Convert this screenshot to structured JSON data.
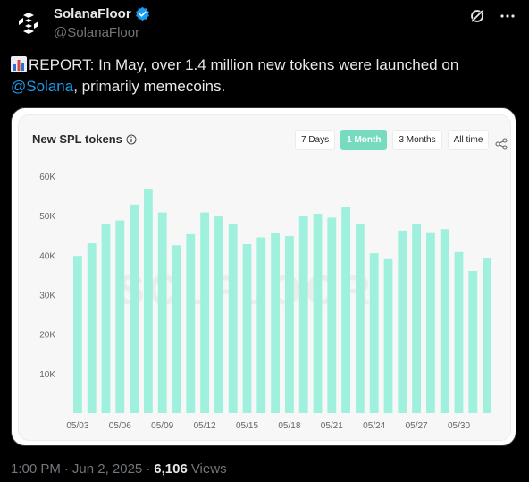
{
  "author": {
    "display_name": "SolanaFloor",
    "handle": "@SolanaFloor",
    "verified_color": "#1d9bf0"
  },
  "tweet": {
    "text_before": "REPORT: In May, over 1.4 million new tokens were launched on ",
    "mention": "@Solana",
    "text_after": ", primarily memecoins."
  },
  "footer": {
    "time": "1:00 PM",
    "sep1": "·",
    "date": "Jun 2, 2025",
    "sep2": "·",
    "views_count": "6,106",
    "views_label": "Views"
  },
  "chart_widget": {
    "title": "New SPL tokens",
    "tabs": [
      {
        "label": "7 Days",
        "active": false
      },
      {
        "label": "1 Month",
        "active": true
      },
      {
        "label": "3 Months",
        "active": false
      },
      {
        "label": "All time",
        "active": false
      }
    ],
    "watermark": "SOLFLOOR",
    "accent": "#9ff0dc"
  },
  "chart_data": {
    "type": "bar",
    "title": "New SPL tokens",
    "xlabel": "",
    "ylabel": "",
    "ylim": [
      0,
      60000
    ],
    "yticks": [
      "10K",
      "20K",
      "30K",
      "40K",
      "50K",
      "60K"
    ],
    "ytick_values": [
      10000,
      20000,
      30000,
      40000,
      50000,
      60000
    ],
    "xtick_labels": [
      "05/03",
      "05/06",
      "05/09",
      "05/12",
      "05/15",
      "05/18",
      "05/21",
      "05/24",
      "05/27",
      "05/30"
    ],
    "categories": [
      "05/03",
      "05/04",
      "05/05",
      "05/06",
      "05/07",
      "05/08",
      "05/09",
      "05/10",
      "05/11",
      "05/12",
      "05/13",
      "05/14",
      "05/15",
      "05/16",
      "05/17",
      "05/18",
      "05/19",
      "05/20",
      "05/21",
      "05/22",
      "05/23",
      "05/24",
      "05/25",
      "05/26",
      "05/27",
      "05/28",
      "05/29",
      "05/30",
      "05/31",
      "06/01"
    ],
    "values": [
      39800,
      43000,
      47800,
      48800,
      52800,
      56800,
      50800,
      42500,
      45300,
      50800,
      49800,
      48000,
      42800,
      44500,
      45500,
      44800,
      49900,
      50500,
      49500,
      52300,
      48000,
      40500,
      39000,
      46200,
      47800,
      45800,
      46600,
      40800,
      36000,
      39300
    ],
    "grid": false,
    "bar_color": "#9ff0dc"
  }
}
